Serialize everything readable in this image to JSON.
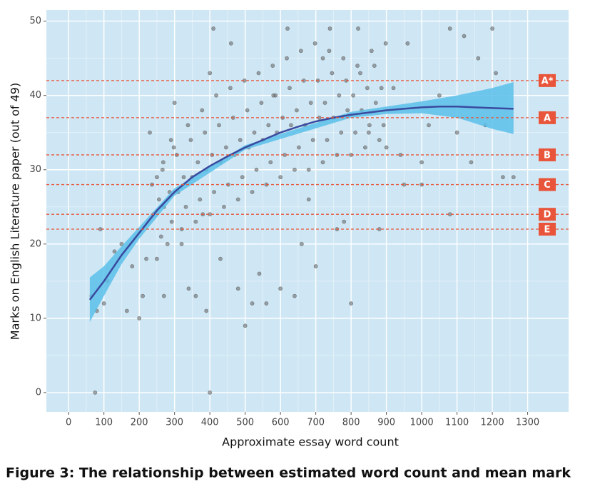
{
  "chart_data": {
    "type": "scatter",
    "caption": "Figure 3: The relationship between estimated word count and mean mark",
    "x_label": "Approximate essay word count",
    "y_label": "Marks on English Literature paper (out of 49)",
    "xlim": [
      -63,
      1416
    ],
    "ylim": [
      -2.6,
      51.5
    ],
    "xticks": [
      0,
      100,
      200,
      300,
      400,
      500,
      600,
      700,
      800,
      900,
      1000,
      1100,
      1200,
      1300
    ],
    "yticks": [
      0,
      10,
      20,
      30,
      40,
      50
    ],
    "grid": true,
    "series": [
      {
        "color": "#6b6b6b",
        "x": [
          250,
          262,
          240,
          256,
          236,
          268,
          280,
          292,
          270,
          286,
          266,
          298,
          320,
          332,
          310,
          326,
          306,
          338,
          360,
          372,
          350,
          366,
          346,
          378,
          400,
          412,
          390,
          406,
          386,
          418,
          440,
          452,
          430,
          446,
          426,
          458,
          480,
          492,
          470,
          486,
          466,
          498,
          520,
          532,
          510,
          526,
          506,
          538,
          560,
          572,
          550,
          566,
          546,
          578,
          600,
          612,
          590,
          606,
          586,
          618,
          640,
          652,
          630,
          646,
          626,
          658,
          680,
          692,
          670,
          686,
          666,
          698,
          720,
          732,
          710,
          726,
          706,
          738,
          760,
          772,
          750,
          766,
          746,
          778,
          800,
          812,
          790,
          806,
          786,
          818,
          840,
          852,
          830,
          846,
          826,
          858,
          880,
          892,
          870,
          886,
          866,
          898,
          75,
          400,
          65,
          80,
          100,
          90,
          110,
          130,
          150,
          165,
          180,
          200,
          210,
          220,
          230,
          250,
          270,
          290,
          300,
          320,
          340,
          360,
          380,
          390,
          400,
          410,
          430,
          460,
          480,
          500,
          520,
          540,
          560,
          580,
          600,
          620,
          640,
          660,
          680,
          700,
          720,
          740,
          760,
          780,
          800,
          820,
          850,
          880,
          900,
          920,
          950,
          960,
          1000,
          1020,
          1050,
          1080,
          1100,
          1120,
          1140,
          1160,
          1180,
          1200,
          1210,
          1230,
          1260,
          1080,
          1000,
          940
        ],
        "y": [
          18,
          21,
          24,
          26,
          28,
          31,
          20,
          23,
          25,
          27,
          30,
          33,
          22,
          25,
          27,
          29,
          32,
          36,
          23,
          26,
          29,
          31,
          34,
          38,
          24,
          27,
          30,
          32,
          35,
          40,
          25,
          28,
          31,
          33,
          36,
          41,
          26,
          29,
          32,
          34,
          37,
          42,
          27,
          30,
          33,
          35,
          38,
          43,
          28,
          31,
          34,
          36,
          39,
          44,
          29,
          32,
          35,
          37,
          40,
          45,
          30,
          33,
          36,
          38,
          41,
          46,
          30,
          34,
          36,
          39,
          42,
          47,
          31,
          34,
          37,
          39,
          42,
          46,
          32,
          35,
          37,
          40,
          43,
          45,
          32,
          35,
          38,
          40,
          42,
          44,
          33,
          36,
          38,
          41,
          43,
          46,
          34,
          36,
          39,
          41,
          44,
          47,
          0,
          0,
          13,
          11,
          12,
          22,
          15,
          19,
          20,
          11,
          17,
          10,
          13,
          18,
          35,
          29,
          13,
          34,
          39,
          20,
          14,
          13,
          24,
          11,
          43,
          49,
          18,
          47,
          14,
          9,
          12,
          16,
          12,
          40,
          14,
          49,
          13,
          20,
          26,
          17,
          45,
          49,
          22,
          23,
          12,
          49,
          35,
          22,
          33,
          41,
          28,
          47,
          28,
          36,
          40,
          49,
          35,
          48,
          31,
          45,
          36,
          49,
          43,
          29,
          29,
          24,
          31,
          32
        ]
      }
    ],
    "fit": {
      "color": "#3a4a9f",
      "x": [
        60,
        100,
        150,
        200,
        250,
        300,
        350,
        400,
        450,
        500,
        550,
        600,
        650,
        700,
        750,
        800,
        850,
        900,
        950,
        1000,
        1050,
        1100,
        1150,
        1200,
        1260
      ],
      "y": [
        12.5,
        15,
        18.5,
        21.5,
        24.5,
        27,
        29,
        30.5,
        31.8,
        33,
        34,
        35,
        35.8,
        36.5,
        37,
        37.4,
        37.7,
        38,
        38.2,
        38.4,
        38.5,
        38.5,
        38.4,
        38.3,
        38.2
      ]
    },
    "band": {
      "color": "#5bbfe9",
      "x": [
        60,
        100,
        150,
        200,
        300,
        500,
        800,
        900,
        1000,
        1100,
        1200,
        1260
      ],
      "lower": [
        9.5,
        13,
        17.3,
        20.7,
        26.5,
        32.7,
        37,
        37.5,
        37.6,
        37,
        35.5,
        34.8
      ],
      "upper": [
        15.5,
        17,
        19.7,
        22.3,
        27.5,
        33.3,
        37.8,
        38.5,
        39.2,
        40,
        41,
        41.8
      ]
    },
    "boundary_color": "#e8553a",
    "grade_boundaries": [
      {
        "label": "A*",
        "value": 42
      },
      {
        "label": "A",
        "value": 37
      },
      {
        "label": "B",
        "value": 32
      },
      {
        "label": "C",
        "value": 28
      },
      {
        "label": "D",
        "value": 24
      },
      {
        "label": "E",
        "value": 22
      }
    ]
  }
}
